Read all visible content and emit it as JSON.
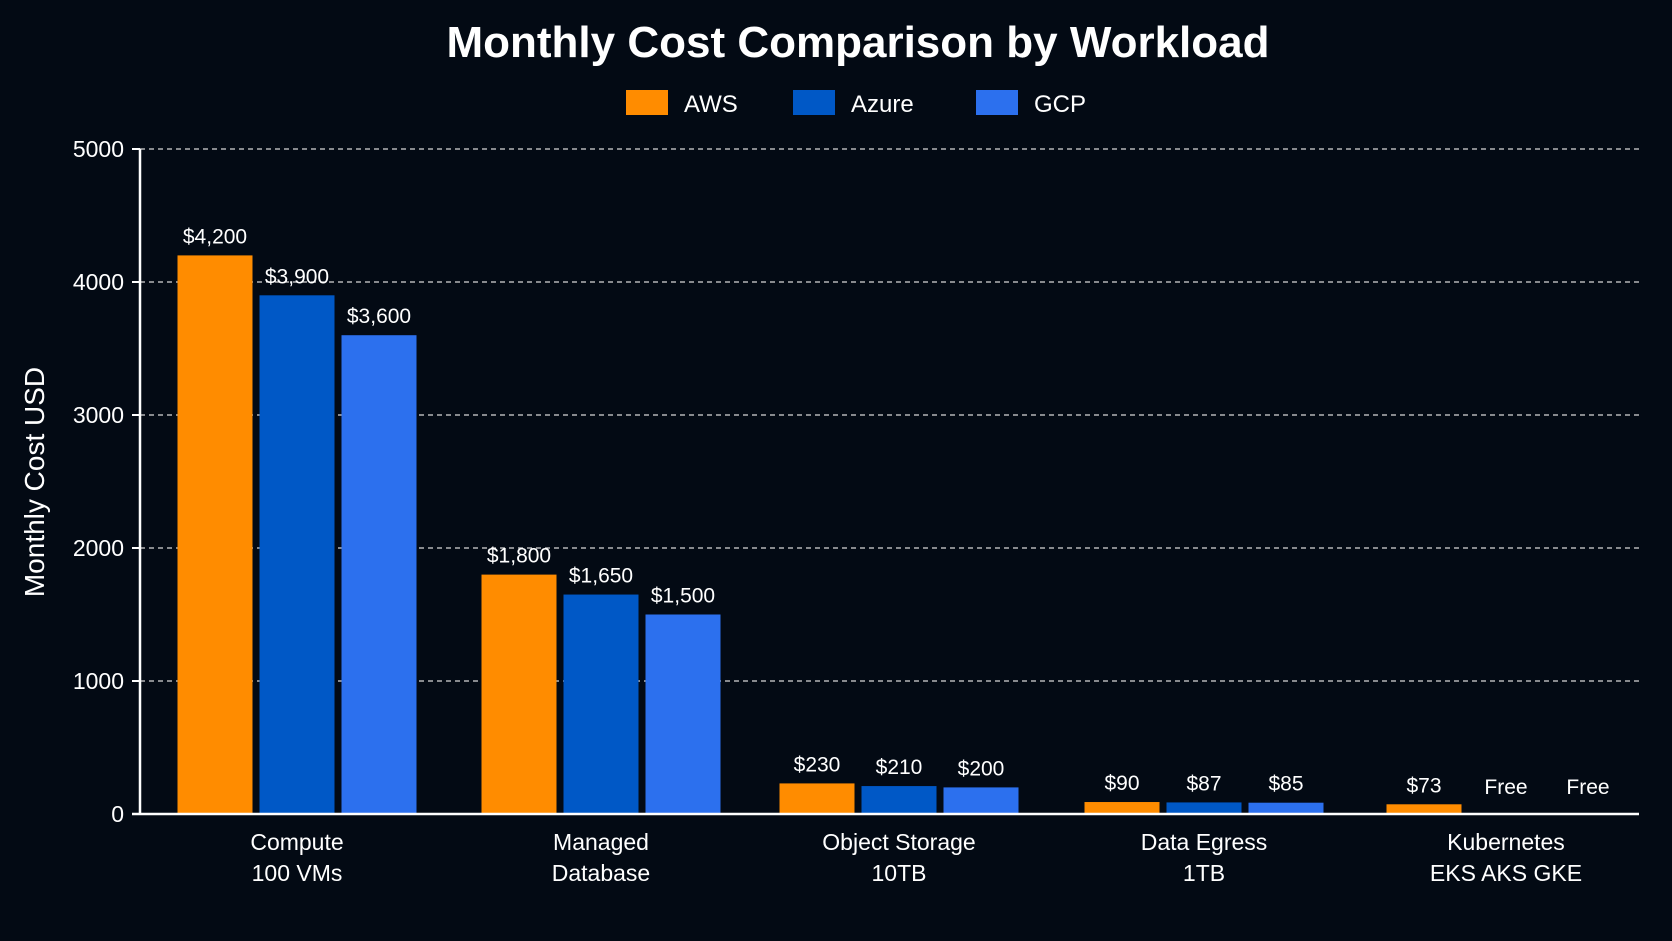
{
  "chart_data": {
    "type": "bar",
    "title": "Monthly Cost Comparison by Workload",
    "xlabel": "",
    "ylabel": "Monthly Cost USD",
    "ylim": [
      0,
      5000
    ],
    "yticks": [
      "0",
      "1000",
      "2000",
      "3000",
      "4000",
      "5000"
    ],
    "grid": true,
    "legend_position": "top-center",
    "categories": [
      [
        "Compute",
        "100 VMs"
      ],
      [
        "Managed",
        "Database"
      ],
      [
        "Object Storage",
        "10TB"
      ],
      [
        "Data Egress",
        "1TB"
      ],
      [
        "Kubernetes",
        "EKS AKS GKE"
      ]
    ],
    "series": [
      {
        "name": "AWS",
        "color": "#ff8c00",
        "values": [
          4200,
          1800,
          230,
          90,
          73
        ],
        "labels": [
          "$4,200",
          "$1,800",
          "$230",
          "$90",
          "$73"
        ]
      },
      {
        "name": "Azure",
        "color": "#0058c6",
        "values": [
          3900,
          1650,
          210,
          87,
          0
        ],
        "labels": [
          "$3,900",
          "$1,650",
          "$210",
          "$87",
          "Free"
        ]
      },
      {
        "name": "GCP",
        "color": "#2c70ee",
        "values": [
          3600,
          1500,
          200,
          85,
          0
        ],
        "labels": [
          "$3,600",
          "$1,500",
          "$200",
          "$85",
          "Free"
        ]
      }
    ]
  }
}
